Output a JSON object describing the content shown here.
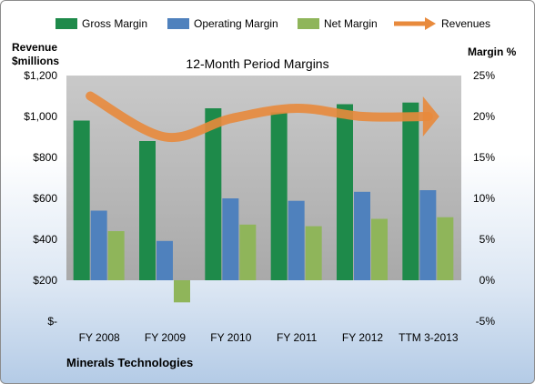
{
  "chart_data": {
    "type": "bar",
    "title": "12-Month Period Margins",
    "company": "Minerals Technologies",
    "categories": [
      "FY 2008",
      "FY 2009",
      "FY 2010",
      "FY 2011",
      "FY 2012",
      "TTM 3-2013"
    ],
    "left_axis": {
      "label_line1": "Revenue",
      "label_line2": "$millions",
      "ticks": [
        "$-",
        "$200",
        "$400",
        "$600",
        "$800",
        "$1,000",
        "$1,200"
      ],
      "tick_values": [
        0,
        200,
        400,
        600,
        800,
        1000,
        1200
      ],
      "ylim": [
        0,
        1200
      ]
    },
    "right_axis": {
      "label": "Margin %",
      "ticks": [
        "-5%",
        "0%",
        "5%",
        "10%",
        "15%",
        "20%",
        "25%"
      ],
      "tick_values": [
        -5,
        0,
        5,
        10,
        15,
        20,
        25
      ],
      "ylim": [
        -5,
        25
      ]
    },
    "series": [
      {
        "name": "Gross Margin",
        "axis": "right",
        "color": "#1e8a4a",
        "values": [
          19.5,
          17.0,
          21.0,
          20.5,
          21.5,
          21.7
        ]
      },
      {
        "name": "Operating Margin",
        "axis": "right",
        "color": "#4f81bd",
        "values": [
          8.5,
          4.8,
          10.0,
          9.7,
          10.8,
          11.0
        ]
      },
      {
        "name": "Net Margin",
        "axis": "right",
        "color": "#8fb55a",
        "values": [
          6.0,
          -2.7,
          6.8,
          6.6,
          7.5,
          7.7
        ]
      },
      {
        "name": "Revenues",
        "axis": "left",
        "type": "line",
        "color": "#e88a3c",
        "values": [
          1100,
          900,
          990,
          1040,
          1000,
          1000
        ]
      }
    ],
    "legend_placement": "top",
    "grid": false
  }
}
